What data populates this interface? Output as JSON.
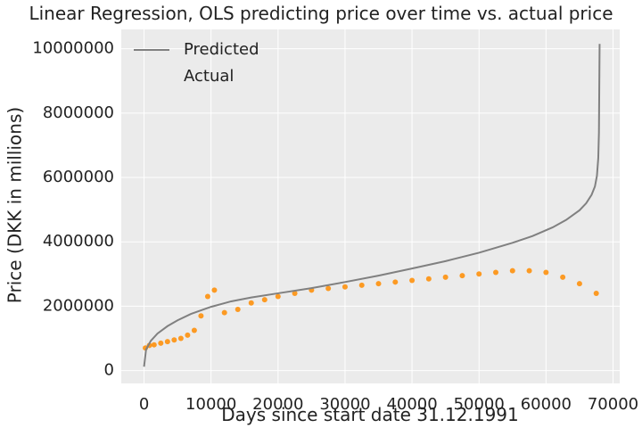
{
  "chart_data": {
    "type": "scatter",
    "title": "Linear Regression, OLS predicting price over time vs. actual price",
    "xlabel": "Days since start date 31.12.1991",
    "ylabel": "Price (DKK in millions)",
    "xlim": [
      -3400,
      71000
    ],
    "ylim": [
      -400000,
      10600000
    ],
    "xticks": [
      0,
      10000,
      20000,
      30000,
      40000,
      50000,
      60000,
      70000
    ],
    "xtick_labels": [
      "0",
      "10000",
      "20000",
      "30000",
      "40000",
      "50000",
      "60000",
      "70000"
    ],
    "yticks": [
      0,
      2000000,
      4000000,
      6000000,
      8000000,
      10000000
    ],
    "ytick_labels": [
      "0",
      "2000000",
      "4000000",
      "6000000",
      "8000000",
      "10000000"
    ],
    "grid": true,
    "legend_position": "top-left",
    "background": "#ebebeb",
    "series": [
      {
        "name": "Predicted",
        "kind": "line",
        "color": "#808080",
        "x": [
          0,
          300,
          1000,
          2000,
          3500,
          5000,
          7000,
          10000,
          13000,
          16000,
          20000,
          25000,
          30000,
          35000,
          40000,
          45000,
          50000,
          55000,
          58000,
          61000,
          63000,
          65000,
          66000,
          66800,
          67300,
          67600,
          67800,
          67900,
          68000
        ],
        "values": [
          120000,
          650000,
          920000,
          1150000,
          1380000,
          1560000,
          1760000,
          1980000,
          2150000,
          2270000,
          2400000,
          2560000,
          2750000,
          2950000,
          3170000,
          3400000,
          3660000,
          3970000,
          4180000,
          4450000,
          4680000,
          4980000,
          5200000,
          5460000,
          5720000,
          6050000,
          6600000,
          7400000,
          10150000
        ]
      },
      {
        "name": "Actual",
        "kind": "scatter",
        "color": "#ff8c00",
        "x": [
          200,
          800,
          1500,
          2500,
          3500,
          4500,
          5500,
          6500,
          7500,
          8500,
          9500,
          10500,
          12000,
          14000,
          16000,
          18000,
          20000,
          22500,
          25000,
          27500,
          30000,
          32500,
          35000,
          37500,
          40000,
          42500,
          45000,
          47500,
          50000,
          52500,
          55000,
          57500,
          60000,
          62500,
          65000,
          67500
        ],
        "values": [
          700000,
          780000,
          800000,
          850000,
          900000,
          950000,
          1000000,
          1100000,
          1250000,
          1700000,
          2300000,
          2500000,
          1800000,
          1900000,
          2100000,
          2200000,
          2300000,
          2400000,
          2500000,
          2550000,
          2600000,
          2650000,
          2700000,
          2750000,
          2800000,
          2850000,
          2900000,
          2950000,
          3000000,
          3050000,
          3100000,
          3100000,
          3050000,
          2900000,
          2700000,
          2400000
        ]
      }
    ]
  }
}
